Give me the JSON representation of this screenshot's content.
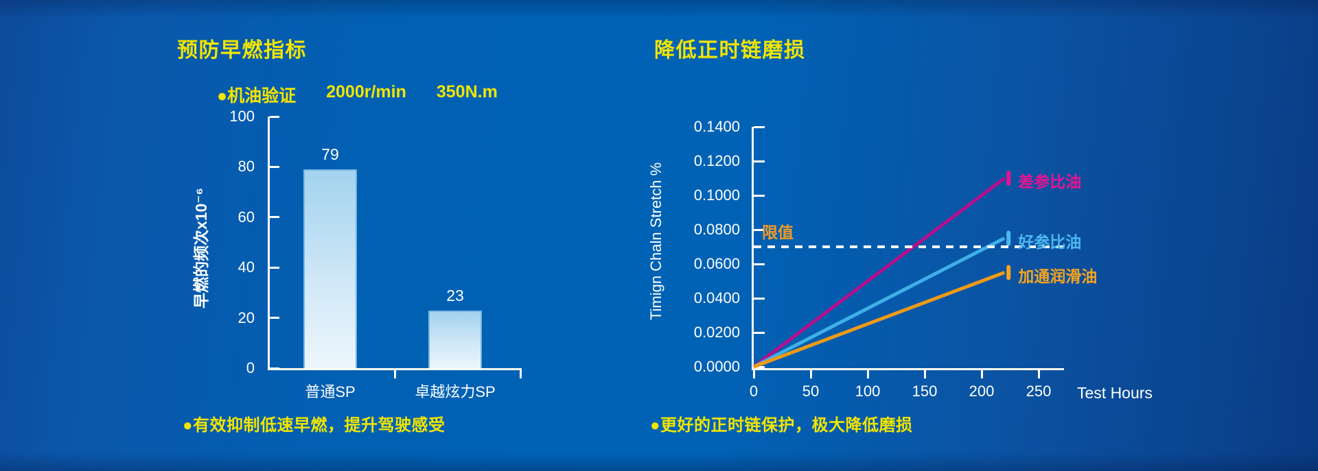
{
  "colors": {
    "accent_yellow": "#f2e500",
    "axis_white": "#ffffff",
    "limit_label_orange": "#f09a28",
    "bg_left": "#0d4b9a",
    "bg_center": "#0062b5",
    "bg_right": "#093b82",
    "bar_fill_top": "#a3d3ee",
    "bar_fill_bottom": "#edf6fc",
    "bar_border": "#79b7e2"
  },
  "chart_data": [
    {
      "type": "bar",
      "title": "预防早燃指标",
      "legend": [
        "●机油验证",
        "2000r/min",
        "350N.m"
      ],
      "ylabel": "早燃的频次x10⁻⁶",
      "ylim": [
        0,
        100
      ],
      "yticks": [
        [
          0,
          "0"
        ],
        [
          20,
          "20"
        ],
        [
          40,
          "40"
        ],
        [
          60,
          "60"
        ],
        [
          80,
          "80"
        ],
        [
          100,
          "100"
        ]
      ],
      "categories": [
        "普通SP",
        "卓越炫力SP"
      ],
      "values": [
        79,
        23
      ],
      "grid": false,
      "note": "●有效抑制低速早燃，提升驾驶感受"
    },
    {
      "type": "line",
      "title": "降低正时链磨损",
      "ylabel": "Timign Chaln Stretch %",
      "xlabel": "Test Hours",
      "ylim": [
        0,
        0.14
      ],
      "xlim": [
        0,
        272
      ],
      "yticks": [
        [
          0,
          "0.0000"
        ],
        [
          0.02,
          "0.0200"
        ],
        [
          0.04,
          "0.0400"
        ],
        [
          0.06,
          "0.0600"
        ],
        [
          0.08,
          "0.0800"
        ],
        [
          0.1,
          "0.1000"
        ],
        [
          0.12,
          "0.1200"
        ],
        [
          0.14,
          "0.1400"
        ]
      ],
      "xticks": [
        [
          0,
          "0"
        ],
        [
          50,
          "50"
        ],
        [
          100,
          "100"
        ],
        [
          150,
          "150"
        ],
        [
          200,
          "200"
        ],
        [
          250,
          "250"
        ]
      ],
      "series": [
        {
          "name": "差参比油",
          "color": "#b4108c",
          "label_color": "#ea1292",
          "points": [
            [
              0,
              0
            ],
            [
              220,
              0.11
            ]
          ]
        },
        {
          "name": "好参比油",
          "color": "#3fafe8",
          "label_color": "#4cb8f0",
          "points": [
            [
              0,
              0
            ],
            [
              220,
              0.075
            ]
          ]
        },
        {
          "name": "加通润滑油",
          "color": "#f09a14",
          "label_color": "#f6a41e",
          "points": [
            [
              0,
              0
            ],
            [
              220,
              0.055
            ]
          ]
        }
      ],
      "limit": {
        "label": "限值",
        "value": 0.07
      },
      "grid": false,
      "legend_position": "line-end-labels",
      "note": "●更好的正时链保护，极大降低磨损"
    }
  ]
}
